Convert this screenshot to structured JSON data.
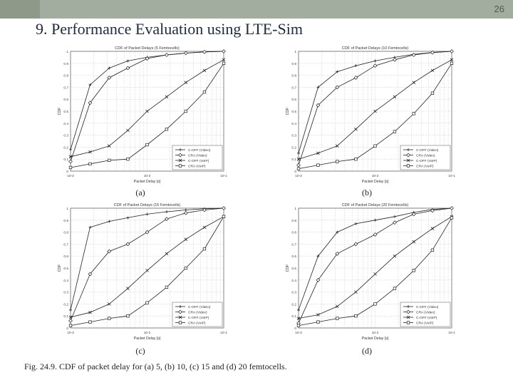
{
  "slide": {
    "number": "26",
    "title": "9. Performance Evaluation using LTE-Sim",
    "caption": "Fig. 24.9. CDF of packet delay for (a) 5, (b) 10, (c) 15 and (d) 20 femtocells."
  },
  "colors": {
    "top_bar": "#a3ad9f",
    "title_text": "#1d2b3d",
    "plot_lines": "#222222"
  },
  "chart_data": [
    {
      "type": "line",
      "panel": "(a)",
      "title": "CDF of Packet Delays (5 Femtocells)",
      "xlabel": "Packet Delay [s]",
      "ylabel": "CDF",
      "xscale": "log",
      "xlim": [
        0.001,
        0.1
      ],
      "ylim": [
        0,
        1
      ],
      "xticks": [
        "10-3",
        "10-2",
        "10-1"
      ],
      "yticks": [
        "0",
        "0.1",
        "0.2",
        "0.3",
        "0.4",
        "0.5",
        "0.6",
        "0.7",
        "0.8",
        "0.9",
        "1"
      ],
      "grid": true,
      "legend": "bottom-right",
      "series": [
        {
          "name": "C-OFF (Video)",
          "marker": "plus",
          "x": [
            0.001,
            0.0018,
            0.0032,
            0.0056,
            0.01,
            0.018,
            0.032,
            0.056,
            0.1
          ],
          "y": [
            0.18,
            0.72,
            0.86,
            0.92,
            0.95,
            0.97,
            0.985,
            0.995,
            1
          ]
        },
        {
          "name": "CRA (Video)",
          "marker": "diamond",
          "x": [
            0.001,
            0.0018,
            0.0032,
            0.0056,
            0.01,
            0.018,
            0.032,
            0.056,
            0.1
          ],
          "y": [
            0.08,
            0.57,
            0.78,
            0.86,
            0.94,
            0.97,
            0.985,
            0.995,
            1
          ]
        },
        {
          "name": "C-OFF (VoIP)",
          "marker": "x",
          "x": [
            0.001,
            0.0018,
            0.0032,
            0.0056,
            0.01,
            0.018,
            0.032,
            0.056,
            0.1
          ],
          "y": [
            0.12,
            0.16,
            0.21,
            0.34,
            0.5,
            0.62,
            0.74,
            0.84,
            0.93
          ]
        },
        {
          "name": "CRA (VoIP)",
          "marker": "square",
          "x": [
            0.001,
            0.0018,
            0.0032,
            0.0056,
            0.01,
            0.018,
            0.032,
            0.056,
            0.1
          ],
          "y": [
            0.03,
            0.06,
            0.09,
            0.1,
            0.22,
            0.35,
            0.5,
            0.66,
            0.9
          ]
        }
      ]
    },
    {
      "type": "line",
      "panel": "(b)",
      "title": "CDF of Packet Delays (10 Femtocells)",
      "xlabel": "Packet Delay [s]",
      "ylabel": "CDF",
      "xscale": "log",
      "xlim": [
        0.001,
        0.1
      ],
      "ylim": [
        0,
        1
      ],
      "xticks": [
        "10-3",
        "10-2",
        "10-1"
      ],
      "yticks": [
        "0",
        "0.1",
        "0.2",
        "0.3",
        "0.4",
        "0.5",
        "0.6",
        "0.7",
        "0.8",
        "0.9",
        "1"
      ],
      "grid": true,
      "legend": "bottom-right",
      "series": [
        {
          "name": "C-OFF (Video)",
          "marker": "plus",
          "x": [
            0.001,
            0.0018,
            0.0032,
            0.0056,
            0.01,
            0.018,
            0.032,
            0.056,
            0.1
          ],
          "y": [
            0.15,
            0.7,
            0.83,
            0.88,
            0.92,
            0.95,
            0.975,
            0.99,
            1
          ]
        },
        {
          "name": "CRA (Video)",
          "marker": "diamond",
          "x": [
            0.001,
            0.0018,
            0.0032,
            0.0056,
            0.01,
            0.018,
            0.032,
            0.056,
            0.1
          ],
          "y": [
            0.05,
            0.55,
            0.7,
            0.78,
            0.88,
            0.93,
            0.97,
            0.99,
            1
          ]
        },
        {
          "name": "C-OFF (VoIP)",
          "marker": "x",
          "x": [
            0.001,
            0.0018,
            0.0032,
            0.0056,
            0.01,
            0.018,
            0.032,
            0.056,
            0.1
          ],
          "y": [
            0.1,
            0.15,
            0.21,
            0.35,
            0.5,
            0.62,
            0.74,
            0.84,
            0.93
          ]
        },
        {
          "name": "CRA (VoIP)",
          "marker": "square",
          "x": [
            0.001,
            0.0018,
            0.0032,
            0.0056,
            0.01,
            0.018,
            0.032,
            0.056,
            0.1
          ],
          "y": [
            0.02,
            0.05,
            0.08,
            0.1,
            0.21,
            0.33,
            0.48,
            0.65,
            0.9
          ]
        }
      ]
    },
    {
      "type": "line",
      "panel": "(c)",
      "title": "CDF of Packet Delays (15 Femtocells)",
      "xlabel": "Packet Delay [s]",
      "ylabel": "CDF",
      "xscale": "log",
      "xlim": [
        0.001,
        0.1
      ],
      "ylim": [
        0,
        1
      ],
      "xticks": [
        "10-3",
        "10-2",
        "10-1"
      ],
      "yticks": [
        "0",
        "0.1",
        "0.2",
        "0.3",
        "0.4",
        "0.5",
        "0.6",
        "0.7",
        "0.8",
        "0.9",
        "1"
      ],
      "grid": true,
      "legend": "bottom-right",
      "series": [
        {
          "name": "C-OFF (Video)",
          "marker": "plus",
          "x": [
            0.001,
            0.0018,
            0.0032,
            0.0056,
            0.01,
            0.018,
            0.032,
            0.056,
            0.1
          ],
          "y": [
            0.15,
            0.84,
            0.89,
            0.92,
            0.95,
            0.97,
            0.985,
            0.995,
            1
          ]
        },
        {
          "name": "CRA (Video)",
          "marker": "diamond",
          "x": [
            0.001,
            0.0018,
            0.0032,
            0.0056,
            0.01,
            0.018,
            0.032,
            0.056,
            0.1
          ],
          "y": [
            0.06,
            0.45,
            0.64,
            0.7,
            0.8,
            0.91,
            0.96,
            0.985,
            1
          ]
        },
        {
          "name": "C-OFF (VoIP)",
          "marker": "x",
          "x": [
            0.001,
            0.0018,
            0.0032,
            0.0056,
            0.01,
            0.018,
            0.032,
            0.056,
            0.1
          ],
          "y": [
            0.09,
            0.13,
            0.2,
            0.33,
            0.48,
            0.62,
            0.74,
            0.84,
            0.93
          ]
        },
        {
          "name": "CRA (VoIP)",
          "marker": "square",
          "x": [
            0.001,
            0.0018,
            0.0032,
            0.0056,
            0.01,
            0.018,
            0.032,
            0.056,
            0.1
          ],
          "y": [
            0.02,
            0.05,
            0.08,
            0.1,
            0.21,
            0.34,
            0.5,
            0.66,
            0.93
          ]
        }
      ]
    },
    {
      "type": "line",
      "panel": "(d)",
      "title": "CDF of Packet Delays (20 Femtocells)",
      "xlabel": "Packet Delay [s]",
      "ylabel": "CDF",
      "xscale": "log",
      "xlim": [
        0.001,
        0.1
      ],
      "ylim": [
        0,
        1
      ],
      "xticks": [
        "10-3",
        "10-2",
        "10-1"
      ],
      "yticks": [
        "0",
        "0.1",
        "0.2",
        "0.3",
        "0.4",
        "0.5",
        "0.6",
        "0.7",
        "0.8",
        "0.9",
        "1"
      ],
      "grid": true,
      "legend": "bottom-right",
      "series": [
        {
          "name": "C-OFF (Video)",
          "marker": "plus",
          "x": [
            0.001,
            0.0018,
            0.0032,
            0.0056,
            0.01,
            0.018,
            0.032,
            0.056,
            0.1
          ],
          "y": [
            0.15,
            0.6,
            0.8,
            0.87,
            0.9,
            0.93,
            0.965,
            0.99,
            1
          ]
        },
        {
          "name": "CRA (Video)",
          "marker": "diamond",
          "x": [
            0.001,
            0.0018,
            0.0032,
            0.0056,
            0.01,
            0.018,
            0.032,
            0.056,
            0.1
          ],
          "y": [
            0.04,
            0.4,
            0.62,
            0.7,
            0.78,
            0.88,
            0.95,
            0.98,
            1
          ]
        },
        {
          "name": "C-OFF (VoIP)",
          "marker": "x",
          "x": [
            0.001,
            0.0018,
            0.0032,
            0.0056,
            0.01,
            0.018,
            0.032,
            0.056,
            0.1
          ],
          "y": [
            0.08,
            0.11,
            0.18,
            0.3,
            0.45,
            0.6,
            0.72,
            0.83,
            0.93
          ]
        },
        {
          "name": "CRA (VoIP)",
          "marker": "square",
          "x": [
            0.001,
            0.0018,
            0.0032,
            0.0056,
            0.01,
            0.018,
            0.032,
            0.056,
            0.1
          ],
          "y": [
            0.02,
            0.05,
            0.08,
            0.1,
            0.2,
            0.33,
            0.48,
            0.65,
            0.92
          ]
        }
      ]
    }
  ]
}
